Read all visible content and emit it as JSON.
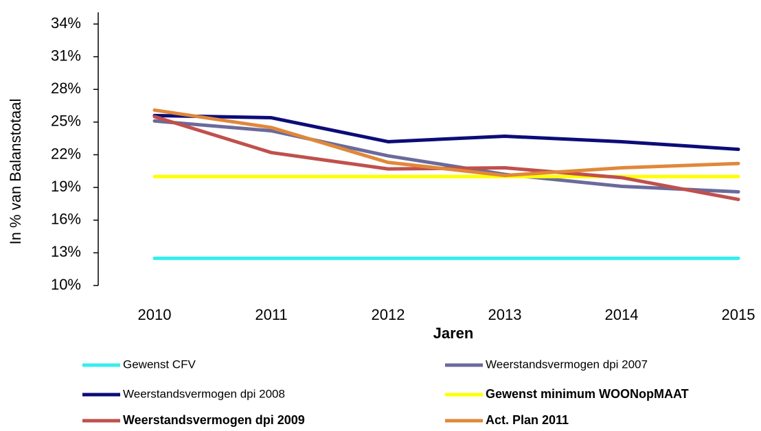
{
  "chart_data": {
    "type": "line",
    "x_label": "Jaren",
    "y_label": "In % van Balanstotaal",
    "categories": [
      "2010",
      "2011",
      "2012",
      "2013",
      "2014",
      "2015"
    ],
    "ylim": [
      10,
      34
    ],
    "yticks": [
      {
        "value": 10,
        "label": "10%"
      },
      {
        "value": 13,
        "label": "13%"
      },
      {
        "value": 16,
        "label": "16%"
      },
      {
        "value": 19,
        "label": "19%"
      },
      {
        "value": 22,
        "label": "22%"
      },
      {
        "value": 25,
        "label": "25%"
      },
      {
        "value": 28,
        "label": "28%"
      },
      {
        "value": 31,
        "label": "31%"
      },
      {
        "value": 34,
        "label": "34%"
      }
    ],
    "grid": false,
    "legend": "bottom",
    "series": [
      {
        "name": "Gewenst CFV",
        "color": "#33eeee",
        "values": [
          12.5,
          12.5,
          12.5,
          12.5,
          12.5,
          12.5
        ]
      },
      {
        "name": "Weerstandsvermogen dpi 2007",
        "color": "#6a6a9c",
        "values": [
          25.1,
          24.2,
          21.9,
          20.2,
          19.1,
          18.6
        ]
      },
      {
        "name": "Weerstandsvermogen dpi 2008",
        "color": "#0c0c78",
        "values": [
          25.6,
          25.4,
          23.2,
          23.7,
          23.2,
          22.5
        ]
      },
      {
        "name": "Gewenst minimum WOONopMAAT",
        "color": "#ffff00",
        "values": [
          20,
          20,
          20,
          20,
          20,
          20
        ]
      },
      {
        "name": "Weerstandsvermogen dpi 2009",
        "color": "#c0504d",
        "values": [
          25.5,
          22.2,
          20.7,
          20.8,
          19.9,
          17.9
        ]
      },
      {
        "name": "Act. Plan 2011",
        "color": "#e0883a",
        "values": [
          26.1,
          24.5,
          21.3,
          20.1,
          20.8,
          21.2
        ]
      }
    ]
  }
}
